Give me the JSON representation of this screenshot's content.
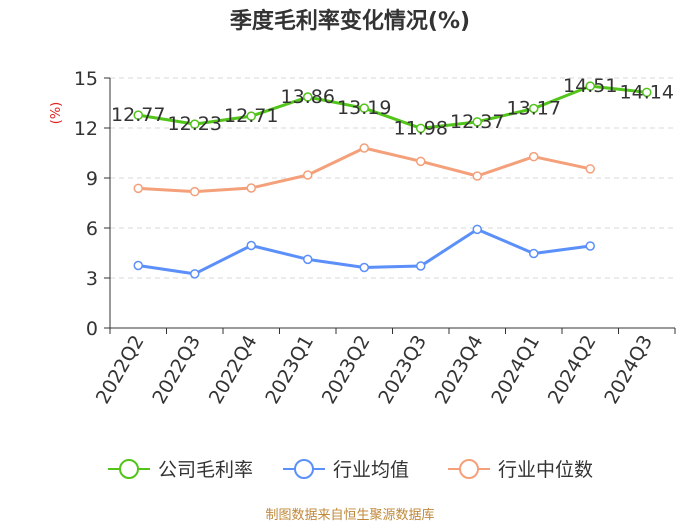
{
  "chart_data": {
    "type": "line",
    "title": "季度毛利率变化情况(%)",
    "ylabel": "(%)",
    "xlabel": "",
    "ylim": [
      0,
      15
    ],
    "yticks": [
      0,
      3,
      6,
      9,
      12,
      15
    ],
    "grid": "horizontal dashed",
    "legend_position": "bottom",
    "categories": [
      "2022Q2",
      "2022Q3",
      "2022Q4",
      "2023Q1",
      "2023Q2",
      "2023Q3",
      "2023Q4",
      "2024Q1",
      "2024Q2",
      "2024Q3"
    ],
    "series": [
      {
        "name": "公司毛利率",
        "color": "#52c41a",
        "show_labels": true,
        "values": [
          12.77,
          12.23,
          12.71,
          13.86,
          13.19,
          11.98,
          12.37,
          13.17,
          14.51,
          14.14
        ]
      },
      {
        "name": "行业均值",
        "color": "#5b8ff9",
        "show_labels": false,
        "values": [
          3.75,
          3.25,
          4.95,
          4.12,
          3.63,
          3.72,
          5.92,
          4.47,
          4.92,
          null
        ]
      },
      {
        "name": "行业中位数",
        "color": "#f4a07a",
        "show_labels": false,
        "values": [
          8.38,
          8.18,
          8.4,
          9.18,
          10.8,
          10.0,
          9.12,
          10.28,
          9.55,
          null
        ]
      }
    ]
  },
  "source": {
    "text": "制图数据来自恒生聚源数据库",
    "color": "#c0883a"
  },
  "ylabel_color": "#e02020"
}
